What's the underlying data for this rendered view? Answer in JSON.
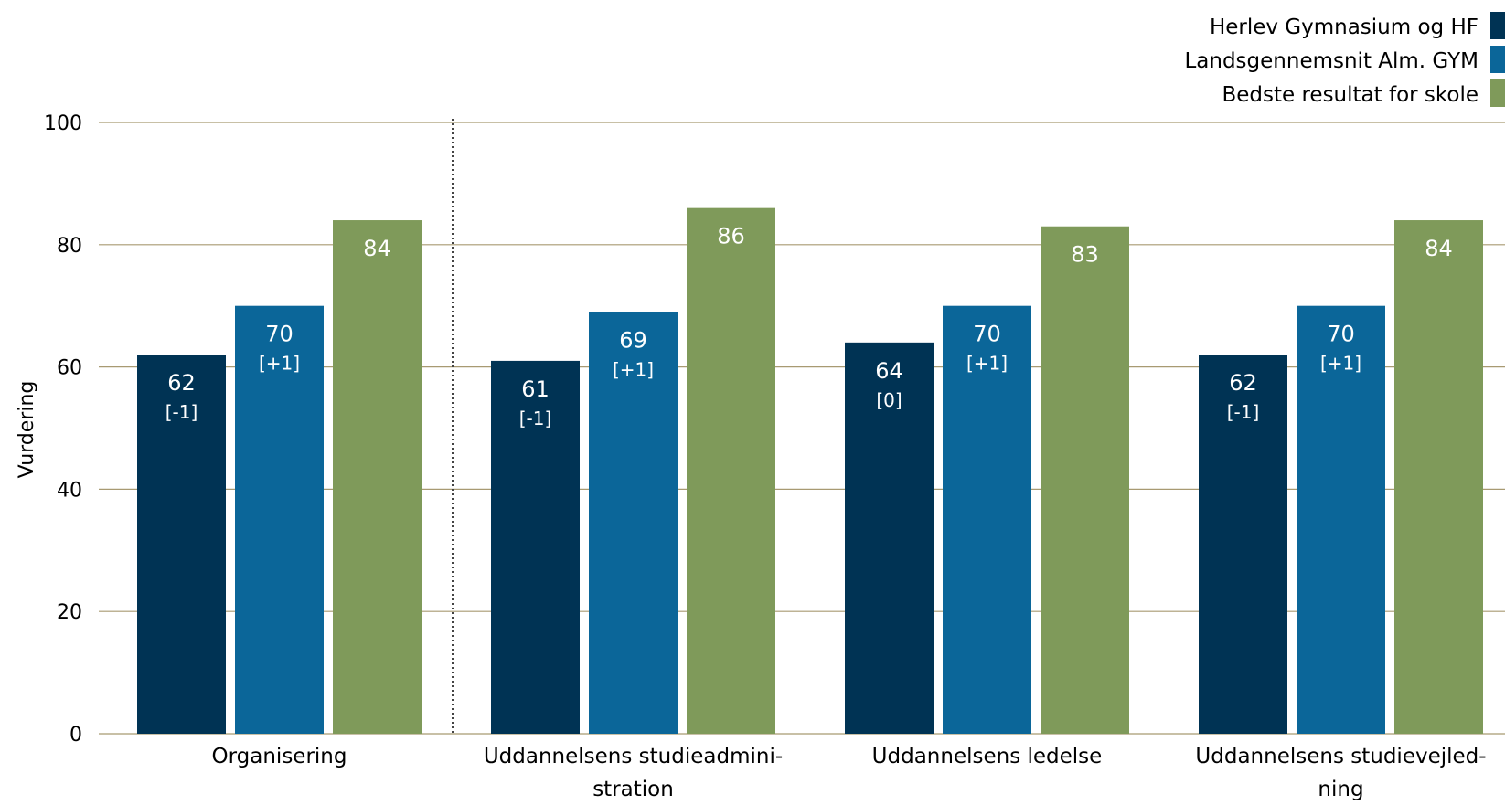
{
  "chart_data": {
    "type": "bar",
    "title": "",
    "ylabel": "Vurdering",
    "xlabel": "",
    "ylim": [
      0,
      100
    ],
    "yticks": [
      0,
      20,
      40,
      60,
      80,
      100
    ],
    "grid": true,
    "legend_position": "top-right",
    "categories": [
      [
        "Organisering"
      ],
      [
        "Uddannelsens studieadmini-",
        "stration"
      ],
      [
        "Uddannelsens ledelse"
      ],
      [
        "Uddannelsens studievejled-",
        "ning"
      ]
    ],
    "separator_after_category": 0,
    "series": [
      {
        "name": "Herlev Gymnasium og HF",
        "color": "#003354",
        "values": [
          62,
          61,
          64,
          62
        ],
        "value_labels": [
          "62",
          "61",
          "64",
          "62"
        ],
        "change_labels": [
          "[-1]",
          "[-1]",
          "[0]",
          "[-1]"
        ]
      },
      {
        "name": "Landsgennemsnit Alm. GYM",
        "color": "#0b6699",
        "values": [
          70,
          69,
          70,
          70
        ],
        "value_labels": [
          "70",
          "69",
          "70",
          "70"
        ],
        "change_labels": [
          "[+1]",
          "[+1]",
          "[+1]",
          "[+1]"
        ]
      },
      {
        "name": "Bedste resultat for skole",
        "color": "#7f9a5a",
        "values": [
          84,
          86,
          83,
          84
        ],
        "value_labels": [
          "84",
          "86",
          "83",
          "84"
        ],
        "change_labels": [
          "",
          "",
          "",
          ""
        ]
      }
    ],
    "colors": {
      "grid": "#a89a72",
      "axis_text": "#000000",
      "bar_label": "#ffffff",
      "separator": "#444444"
    }
  }
}
